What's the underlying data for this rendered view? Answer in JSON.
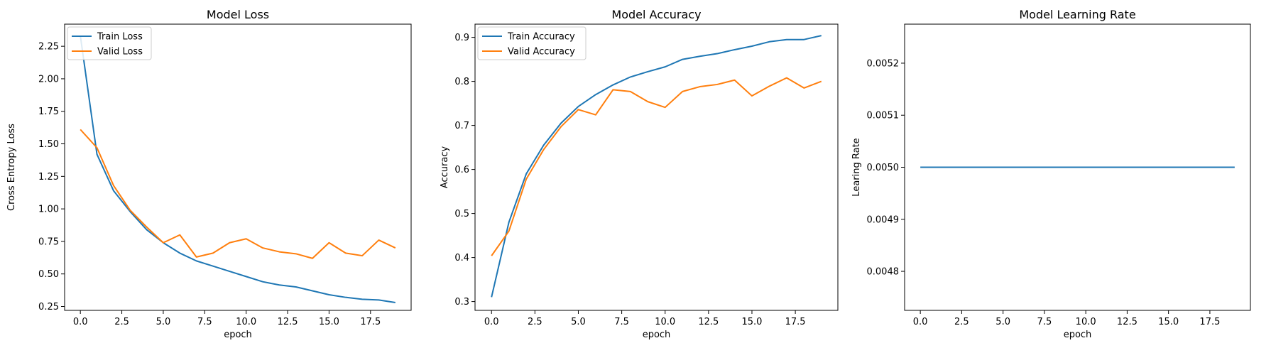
{
  "chart_data": [
    {
      "type": "line",
      "title": "Model Loss",
      "xlabel": "epoch",
      "ylabel": "Cross Entropy Loss",
      "xlim": [
        -0.95,
        19.95
      ],
      "ylim": [
        0.22,
        2.42
      ],
      "xticks": [
        0.0,
        2.5,
        5.0,
        7.5,
        10.0,
        12.5,
        15.0,
        17.5
      ],
      "xtick_labels": [
        "0.0",
        "2.5",
        "5.0",
        "7.5",
        "10.0",
        "12.5",
        "15.0",
        "17.5"
      ],
      "yticks": [
        0.25,
        0.5,
        0.75,
        1.0,
        1.25,
        1.5,
        1.75,
        2.0,
        2.25
      ],
      "ytick_labels": [
        "0.25",
        "0.50",
        "0.75",
        "1.00",
        "1.25",
        "1.50",
        "1.75",
        "2.00",
        "2.25"
      ],
      "legend_position": "top-left",
      "x": [
        0,
        1,
        2,
        3,
        4,
        5,
        6,
        7,
        8,
        9,
        10,
        11,
        12,
        13,
        14,
        15,
        16,
        17,
        18,
        19
      ],
      "series": [
        {
          "name": "Train Loss",
          "color": "#1f77b4",
          "values": [
            2.33,
            1.42,
            1.14,
            0.98,
            0.84,
            0.74,
            0.66,
            0.6,
            0.56,
            0.52,
            0.48,
            0.44,
            0.415,
            0.4,
            0.37,
            0.34,
            0.32,
            0.305,
            0.3,
            0.28
          ]
        },
        {
          "name": "Valid Loss",
          "color": "#ff7f0e",
          "values": [
            1.61,
            1.47,
            1.18,
            0.99,
            0.86,
            0.74,
            0.8,
            0.63,
            0.66,
            0.74,
            0.77,
            0.7,
            0.67,
            0.655,
            0.62,
            0.74,
            0.66,
            0.64,
            0.76,
            0.7
          ]
        }
      ]
    },
    {
      "type": "line",
      "title": "Model Accuracy",
      "xlabel": "epoch",
      "ylabel": "Accuracy",
      "xlim": [
        -0.95,
        19.95
      ],
      "ylim": [
        0.28,
        0.93
      ],
      "xticks": [
        0.0,
        2.5,
        5.0,
        7.5,
        10.0,
        12.5,
        15.0,
        17.5
      ],
      "xtick_labels": [
        "0.0",
        "2.5",
        "5.0",
        "7.5",
        "10.0",
        "12.5",
        "15.0",
        "17.5"
      ],
      "yticks": [
        0.3,
        0.4,
        0.5,
        0.6,
        0.7,
        0.8,
        0.9
      ],
      "ytick_labels": [
        "0.3",
        "0.4",
        "0.5",
        "0.6",
        "0.7",
        "0.8",
        "0.9"
      ],
      "legend_position": "top-left",
      "x": [
        0,
        1,
        2,
        3,
        4,
        5,
        6,
        7,
        8,
        9,
        10,
        11,
        12,
        13,
        14,
        15,
        16,
        17,
        18,
        19
      ],
      "series": [
        {
          "name": "Train Accuracy",
          "color": "#1f77b4",
          "values": [
            0.31,
            0.48,
            0.59,
            0.655,
            0.705,
            0.743,
            0.77,
            0.792,
            0.81,
            0.822,
            0.833,
            0.85,
            0.857,
            0.863,
            0.872,
            0.88,
            0.89,
            0.895,
            0.895,
            0.904
          ]
        },
        {
          "name": "Valid Accuracy",
          "color": "#ff7f0e",
          "values": [
            0.404,
            0.46,
            0.578,
            0.645,
            0.697,
            0.736,
            0.724,
            0.781,
            0.777,
            0.754,
            0.741,
            0.777,
            0.788,
            0.793,
            0.803,
            0.767,
            0.789,
            0.808,
            0.785,
            0.8
          ]
        }
      ]
    },
    {
      "type": "line",
      "title": "Model Learning Rate",
      "xlabel": "epoch",
      "ylabel": "Learing Rate",
      "xlim": [
        -0.95,
        19.95
      ],
      "ylim": [
        0.004725,
        0.005275
      ],
      "xticks": [
        0.0,
        2.5,
        5.0,
        7.5,
        10.0,
        12.5,
        15.0,
        17.5
      ],
      "xtick_labels": [
        "0.0",
        "2.5",
        "5.0",
        "7.5",
        "10.0",
        "12.5",
        "15.0",
        "17.5"
      ],
      "yticks": [
        0.0048,
        0.0049,
        0.005,
        0.0051,
        0.0052
      ],
      "ytick_labels": [
        "0.0048",
        "0.0049",
        "0.0050",
        "0.0051",
        "0.0052"
      ],
      "legend_position": "none",
      "x": [
        0,
        1,
        2,
        3,
        4,
        5,
        6,
        7,
        8,
        9,
        10,
        11,
        12,
        13,
        14,
        15,
        16,
        17,
        18,
        19
      ],
      "series": [
        {
          "color": "#1f77b4",
          "values": [
            0.005,
            0.005,
            0.005,
            0.005,
            0.005,
            0.005,
            0.005,
            0.005,
            0.005,
            0.005,
            0.005,
            0.005,
            0.005,
            0.005,
            0.005,
            0.005,
            0.005,
            0.005,
            0.005,
            0.005
          ]
        }
      ]
    }
  ]
}
